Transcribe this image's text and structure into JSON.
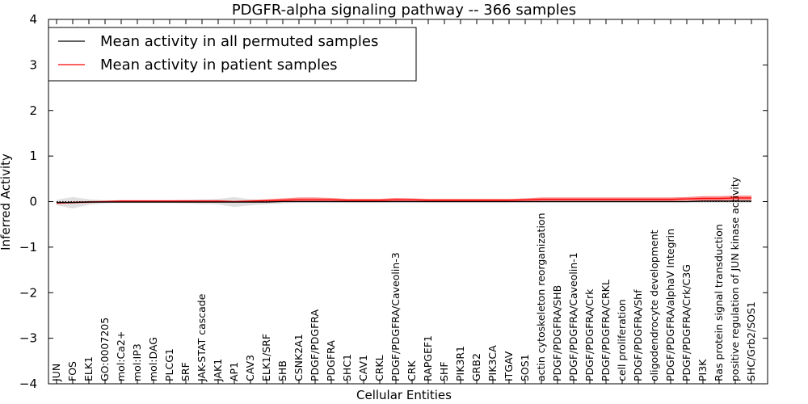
{
  "chart_data": {
    "type": "line",
    "title": "PDGFR-alpha signaling pathway -- 366 samples",
    "xlabel": "Cellular Entities",
    "ylabel": "Inferred Activity",
    "ylim": [
      -4,
      4
    ],
    "yticks": [
      -4,
      -3,
      -2,
      -1,
      0,
      1,
      2,
      3,
      4
    ],
    "ytick_labels": [
      "−4",
      "−3",
      "−2",
      "−1",
      "0",
      "1",
      "2",
      "3",
      "4"
    ],
    "legend_position": "top-left",
    "grid": false,
    "reference_line": 0,
    "categories": [
      "JUN",
      "FOS",
      "ELK1",
      "GO:0007205",
      "mol:Ca2+",
      "mol:IP3",
      "mol:DAG",
      "PLCG1",
      "SRF",
      "JAK-STAT cascade",
      "JAK1",
      "AP1",
      "CAV3",
      "ELK1/SRF",
      "SHB",
      "CSNK2A1",
      "PDGF/PDGFRA",
      "PDGFRA",
      "SHC1",
      "CAV1",
      "CRKL",
      "PDGF/PDGFRA/Caveolin-3",
      "CRK",
      "RAPGEF1",
      "SHF",
      "PIK3R1",
      "GRB2",
      "PIK3CA",
      "ITGAV",
      "SOS1",
      "actin cytoskeleton reorganization",
      "PDGF/PDGFRA/SHB",
      "PDGF/PDGFRA/Caveolin-1",
      "PDGF/PDGFRA/Crk",
      "PDGF/PDGFRA/CRKL",
      "cell proliferation",
      "PDGF/PDGFRA/Shf",
      "oligodendrocyte development",
      "PDGF/PDGFRA/alphaV Integrin",
      "PDGF/PDGFRA/Crk/C3G",
      "PI3K",
      "Ras protein signal transduction",
      "positive regulation of JUN kinase activity",
      "SHC/Grb2/SOS1"
    ],
    "series": [
      {
        "name": "Mean activity in all permuted samples",
        "color": "#000000",
        "values": [
          -0.02,
          -0.02,
          -0.01,
          -0.01,
          -0.01,
          -0.01,
          -0.01,
          -0.01,
          -0.01,
          -0.01,
          -0.01,
          -0.01,
          -0.01,
          -0.01,
          0.0,
          0.0,
          0.0,
          0.0,
          0.0,
          0.0,
          0.0,
          0.0,
          0.0,
          0.0,
          0.0,
          0.0,
          0.0,
          0.0,
          0.0,
          0.0,
          0.0,
          0.0,
          0.0,
          0.0,
          0.0,
          0.0,
          0.0,
          0.0,
          0.0,
          0.0,
          0.01,
          0.01,
          0.01,
          0.01
        ],
        "band_low": [
          -0.08,
          -0.15,
          -0.07,
          -0.04,
          -0.03,
          -0.03,
          -0.03,
          -0.03,
          -0.04,
          -0.05,
          -0.06,
          -0.12,
          -0.08,
          -0.06,
          -0.04,
          -0.03,
          -0.03,
          -0.03,
          -0.03,
          -0.03,
          -0.03,
          -0.03,
          -0.03,
          -0.03,
          -0.03,
          -0.03,
          -0.03,
          -0.03,
          -0.03,
          -0.03,
          -0.03,
          -0.03,
          -0.03,
          -0.03,
          -0.03,
          -0.03,
          -0.03,
          -0.03,
          -0.03,
          -0.03,
          -0.03,
          -0.03,
          -0.03,
          -0.03
        ],
        "band_high": [
          0.04,
          0.1,
          0.05,
          0.03,
          0.03,
          0.03,
          0.03,
          0.03,
          0.04,
          0.05,
          0.06,
          0.1,
          0.05,
          0.04,
          0.03,
          0.03,
          0.03,
          0.03,
          0.03,
          0.03,
          0.03,
          0.03,
          0.03,
          0.03,
          0.03,
          0.03,
          0.03,
          0.03,
          0.03,
          0.03,
          0.03,
          0.03,
          0.03,
          0.03,
          0.03,
          0.03,
          0.03,
          0.03,
          0.03,
          0.03,
          0.03,
          0.03,
          0.03,
          0.03
        ]
      },
      {
        "name": "Mean activity in patient samples",
        "color": "#ff0000",
        "values": [
          -0.03,
          -0.02,
          -0.01,
          0.0,
          0.01,
          0.01,
          0.01,
          0.01,
          0.01,
          0.01,
          0.01,
          0.0,
          0.01,
          0.02,
          0.03,
          0.04,
          0.04,
          0.04,
          0.03,
          0.03,
          0.03,
          0.04,
          0.04,
          0.03,
          0.03,
          0.03,
          0.03,
          0.03,
          0.03,
          0.04,
          0.05,
          0.05,
          0.05,
          0.05,
          0.05,
          0.05,
          0.05,
          0.05,
          0.05,
          0.06,
          0.07,
          0.07,
          0.08,
          0.08
        ],
        "band_low": [
          -0.05,
          -0.04,
          -0.03,
          -0.02,
          -0.01,
          -0.01,
          -0.01,
          -0.01,
          -0.01,
          -0.01,
          -0.01,
          -0.02,
          -0.01,
          0.0,
          0.0,
          0.0,
          0.0,
          0.0,
          0.0,
          0.0,
          0.0,
          0.0,
          0.0,
          0.0,
          0.0,
          0.0,
          0.0,
          0.0,
          0.0,
          0.0,
          0.01,
          0.01,
          0.01,
          0.01,
          0.01,
          0.01,
          0.01,
          0.01,
          0.01,
          0.02,
          0.02,
          0.02,
          0.03,
          0.03
        ],
        "band_high": [
          -0.01,
          0.0,
          0.01,
          0.02,
          0.03,
          0.03,
          0.03,
          0.03,
          0.03,
          0.03,
          0.03,
          0.02,
          0.03,
          0.05,
          0.07,
          0.09,
          0.09,
          0.08,
          0.06,
          0.06,
          0.06,
          0.08,
          0.07,
          0.06,
          0.06,
          0.06,
          0.06,
          0.06,
          0.06,
          0.07,
          0.09,
          0.09,
          0.09,
          0.09,
          0.09,
          0.09,
          0.09,
          0.09,
          0.09,
          0.1,
          0.12,
          0.12,
          0.13,
          0.13
        ]
      }
    ]
  }
}
